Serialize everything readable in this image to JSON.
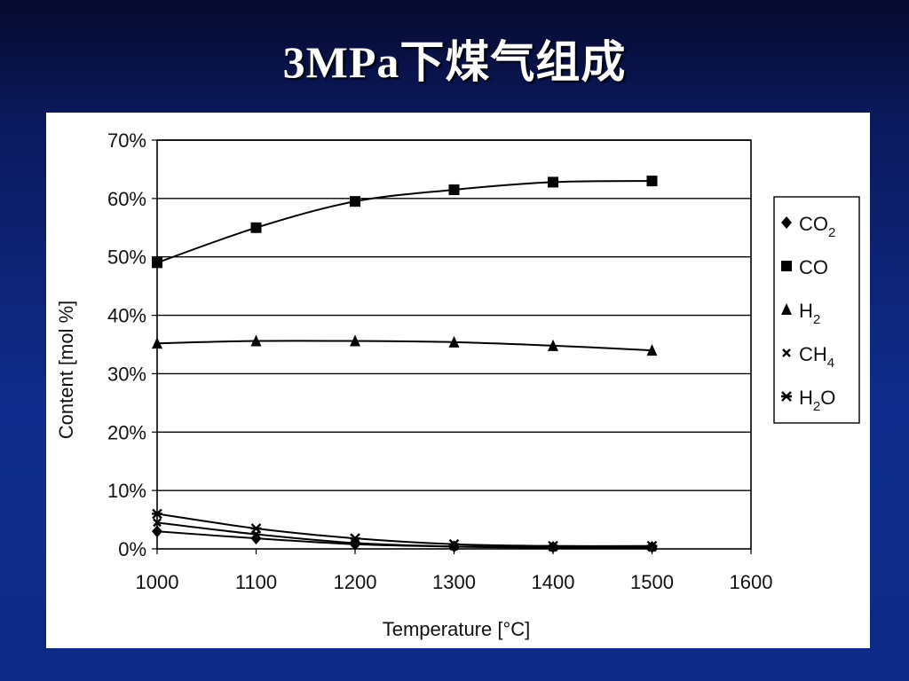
{
  "slide": {
    "title": "3MPa下煤气组成"
  },
  "chart_data": {
    "type": "line",
    "title": "",
    "xlabel": "Temperature [°C]",
    "ylabel": "Content [mol %]",
    "xlim": [
      1000,
      1600
    ],
    "ylim": [
      0,
      70
    ],
    "x_ticks": [
      "1000",
      "1100",
      "1200",
      "1300",
      "1400",
      "1500",
      "1600"
    ],
    "y_ticks": [
      "0%",
      "10%",
      "20%",
      "30%",
      "40%",
      "50%",
      "60%",
      "70%"
    ],
    "grid": "horizontal",
    "legend_position": "right",
    "x": [
      1000,
      1100,
      1200,
      1300,
      1400,
      1500
    ],
    "series": [
      {
        "name": "CO2",
        "base": "CO",
        "sub": "2",
        "marker": "diamond",
        "values": [
          3.0,
          1.8,
          0.8,
          0.4,
          0.3,
          0.3
        ]
      },
      {
        "name": "CO",
        "base": "CO",
        "sub": "",
        "marker": "square",
        "values": [
          49,
          55,
          59.5,
          61.5,
          62.8,
          63
        ]
      },
      {
        "name": "H2",
        "base": "H",
        "sub": "2",
        "marker": "triangle",
        "values": [
          35.2,
          35.6,
          35.6,
          35.4,
          34.8,
          34
        ]
      },
      {
        "name": "CH4",
        "base": "CH",
        "sub": "4",
        "marker": "x",
        "values": [
          4.5,
          2.5,
          1.0,
          0.4,
          0.2,
          0.2
        ]
      },
      {
        "name": "H2O",
        "base": "H",
        "sub": "2",
        "tail": "O",
        "marker": "star",
        "values": [
          6.0,
          3.5,
          1.8,
          0.8,
          0.5,
          0.5
        ]
      }
    ]
  }
}
